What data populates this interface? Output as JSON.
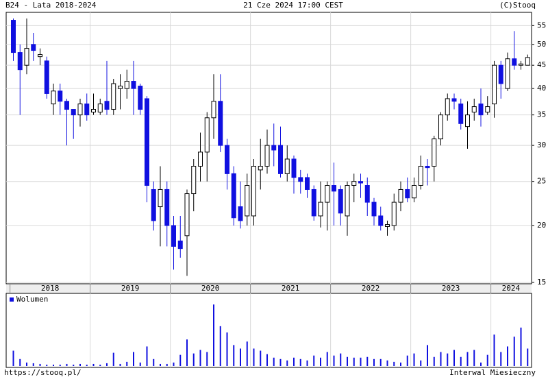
{
  "chart_data": [
    {
      "type": "candlestick",
      "title": "B24 - Lata 2018-2024",
      "subtitle": "21 Cze 2024 17:00 CEST",
      "source": "(C)Stooq",
      "url": "https://stooq.pl/",
      "interval": "Interwal Miesieczny",
      "categories": [
        "2018",
        null,
        null,
        null,
        null,
        null,
        null,
        null,
        null,
        null,
        null,
        null,
        "2019",
        null,
        null,
        null,
        null,
        null,
        null,
        null,
        null,
        null,
        null,
        null,
        "2020",
        null,
        null,
        null,
        null,
        null,
        null,
        null,
        null,
        null,
        null,
        null,
        "2021",
        null,
        null,
        null,
        null,
        null,
        null,
        null,
        null,
        null,
        null,
        null,
        "2022",
        null,
        null,
        null,
        null,
        null,
        null,
        null,
        null,
        null,
        null,
        null,
        "2023",
        null,
        null,
        null,
        null,
        null,
        null,
        null,
        null,
        null,
        null,
        null,
        "2024",
        null,
        null,
        null,
        null,
        null
      ],
      "open": [
        56.5,
        48,
        45,
        50,
        47,
        46,
        37,
        39.5,
        37.5,
        36,
        35,
        37,
        35.5,
        35.5,
        37.5,
        36,
        40,
        40,
        41.5,
        40.5,
        38,
        24,
        22,
        24,
        20,
        18.5,
        19,
        23.5,
        27,
        29,
        34.5,
        37.5,
        30,
        26,
        22,
        21,
        21,
        26.5,
        27,
        30,
        30,
        26,
        28,
        25.5,
        25.5,
        24,
        21,
        22.5,
        24.5,
        24,
        21,
        24.5,
        25,
        24.5,
        22.5,
        21,
        19.9,
        20,
        22.5,
        24,
        23,
        24.5,
        27,
        27,
        31,
        35,
        38,
        37,
        33,
        35.5,
        37,
        35.5,
        37,
        45,
        40,
        46.5,
        45,
        45
      ],
      "high": [
        57,
        50,
        57,
        53,
        49,
        47,
        41,
        41,
        38,
        36,
        38,
        39,
        39,
        38,
        46,
        42,
        43,
        44,
        46,
        41,
        38.5,
        25,
        27,
        25,
        21,
        21,
        24,
        28,
        32,
        35.5,
        43,
        43,
        31,
        27,
        25,
        26,
        28,
        31,
        32.5,
        33.5,
        33,
        30,
        28.5,
        26.5,
        26,
        24.5,
        25,
        25,
        27.5,
        24.5,
        25,
        26,
        26,
        25.5,
        23,
        22,
        20.5,
        23.5,
        25,
        25.5,
        25.5,
        28.5,
        28,
        31.5,
        35.5,
        39,
        39,
        38,
        37.5,
        38,
        40,
        38.5,
        46,
        46,
        48,
        53.5,
        46,
        47.5
      ],
      "low": [
        46,
        35,
        43,
        46,
        45,
        38,
        35,
        35,
        30,
        31,
        33,
        34,
        35,
        35,
        35,
        35,
        36,
        38,
        35,
        35,
        22.5,
        19.5,
        18,
        18,
        16,
        17,
        15.5,
        21.5,
        25,
        25,
        31,
        29,
        24,
        20,
        19.7,
        20,
        20,
        24,
        26,
        27,
        25.5,
        25,
        23.5,
        23.5,
        23,
        20.5,
        19.8,
        19.5,
        20,
        20,
        19,
        22.5,
        23,
        21,
        20,
        19.5,
        19,
        19.5,
        21.5,
        22.5,
        22.5,
        24,
        24.5,
        25,
        30,
        34,
        36,
        32.5,
        29.5,
        34,
        33,
        35,
        34.5,
        38,
        39.5,
        44,
        44,
        45
      ],
      "close": [
        48,
        44,
        49,
        48.5,
        47.5,
        39,
        39.5,
        37.5,
        36,
        35,
        37,
        35,
        36,
        37,
        36,
        41,
        40.5,
        41.5,
        40,
        36,
        24.5,
        20.5,
        24,
        20,
        18,
        17.8,
        23.5,
        27,
        29,
        34.5,
        37.5,
        30,
        26,
        20.8,
        20.5,
        24.5,
        27,
        27,
        30,
        29.3,
        26,
        28,
        25.5,
        25,
        24,
        21,
        22.5,
        24.5,
        23.8,
        21.3,
        24.5,
        25,
        24.8,
        22.5,
        21,
        20,
        20.1,
        22.5,
        24,
        23,
        24.5,
        27,
        26.8,
        31,
        35,
        38,
        37.5,
        33.5,
        35,
        36.5,
        35,
        36.5,
        45,
        41,
        46.5,
        45,
        45.3,
        46.8
      ],
      "up_color": "#ffffff",
      "down_color": "#1010e0",
      "log": true,
      "grid": true,
      "ylim": [
        15,
        58
      ],
      "yticks": [
        15,
        20,
        25,
        30,
        35,
        40,
        45,
        50,
        55
      ]
    },
    {
      "type": "bar",
      "series": [
        {
          "name": "Wolumen",
          "color": "#1010e0",
          "values": [
            22,
            10,
            5,
            4,
            3,
            2,
            2,
            2,
            3,
            2,
            3,
            2,
            3,
            2,
            4,
            19,
            3,
            6,
            20,
            5,
            28,
            10,
            3,
            3,
            5,
            16,
            38,
            18,
            23,
            20,
            88,
            57,
            48,
            30,
            25,
            35,
            25,
            22,
            17,
            12,
            10,
            8,
            12,
            10,
            8,
            15,
            12,
            20,
            15,
            18,
            13,
            12,
            12,
            13,
            10,
            10,
            8,
            6,
            5,
            15,
            18,
            8,
            30,
            13,
            20,
            18,
            23,
            13,
            20,
            23,
            5,
            16,
            45,
            20,
            28,
            42,
            55,
            25
          ]
        }
      ],
      "ylim": [
        0,
        100
      ]
    }
  ]
}
